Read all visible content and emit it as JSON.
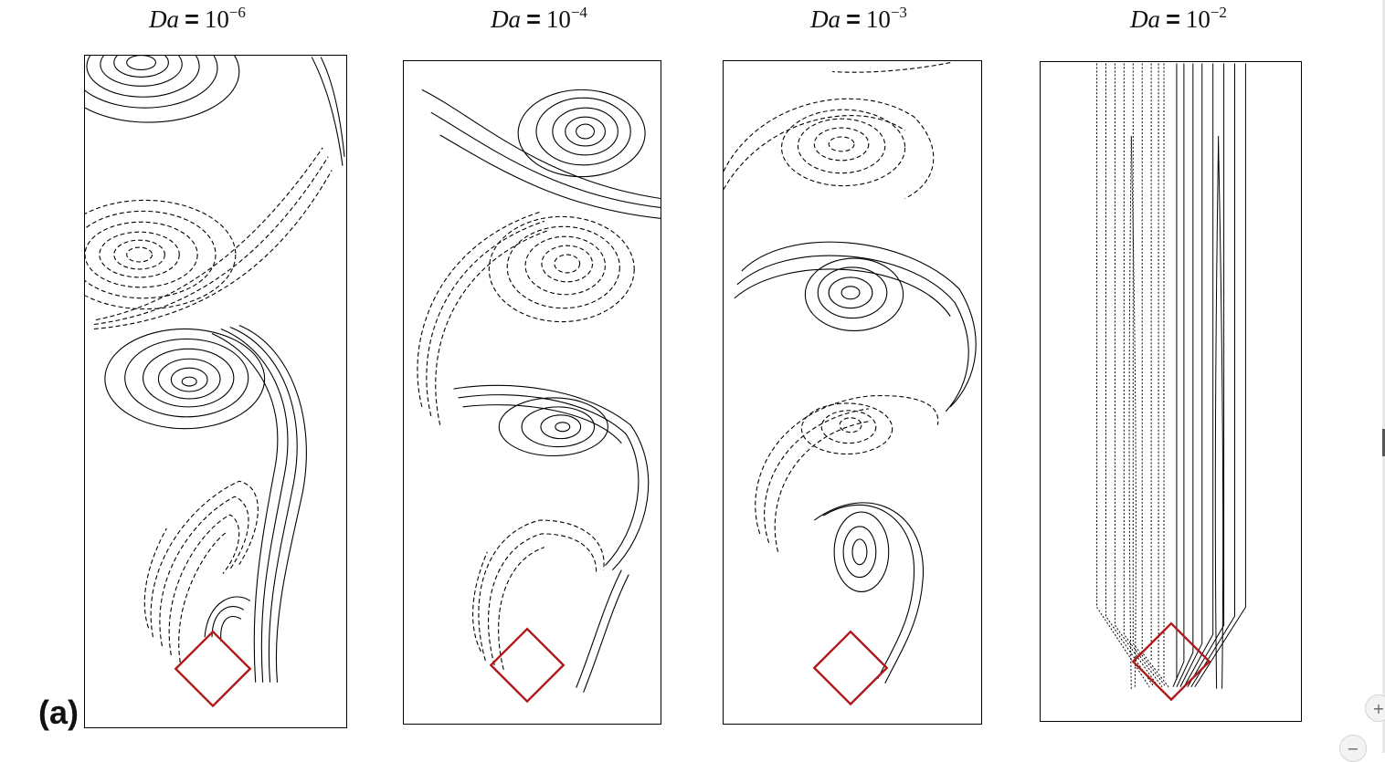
{
  "panels": [
    {
      "var": "Da",
      "eq": "=",
      "base": "10",
      "exp": "−6"
    },
    {
      "var": "Da",
      "eq": "=",
      "base": "10",
      "exp": "−4"
    },
    {
      "var": "Da",
      "eq": "=",
      "base": "10",
      "exp": "−3"
    },
    {
      "var": "Da",
      "eq": "=",
      "base": "10",
      "exp": "−2"
    }
  ],
  "figure_label": "(a)",
  "colors": {
    "contour": "#000000",
    "obstacle": "#b01818"
  },
  "controls": {
    "zoom_in": "+",
    "zoom_out": "−"
  }
}
